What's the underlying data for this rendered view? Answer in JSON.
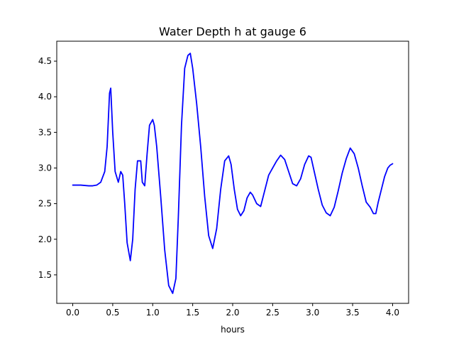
{
  "chart_data": {
    "type": "line",
    "title": "Water Depth h at gauge 6",
    "xlabel": "hours",
    "ylabel": "",
    "xlim": [
      -0.2,
      4.2
    ],
    "ylim": [
      1.1,
      4.78
    ],
    "xticks": [
      0.0,
      0.5,
      1.0,
      1.5,
      2.0,
      2.5,
      3.0,
      3.5,
      4.0
    ],
    "xtick_labels": [
      "0.0",
      "0.5",
      "1.0",
      "1.5",
      "2.0",
      "2.5",
      "3.0",
      "3.5",
      "4.0"
    ],
    "yticks": [
      1.5,
      2.0,
      2.5,
      3.0,
      3.5,
      4.0,
      4.5
    ],
    "ytick_labels": [
      "1.5",
      "2.0",
      "2.5",
      "3.0",
      "3.5",
      "4.0",
      "4.5"
    ],
    "grid": false,
    "series": [
      {
        "color": "#0000ff",
        "x": [
          0.0,
          0.1,
          0.2,
          0.25,
          0.3,
          0.35,
          0.4,
          0.43,
          0.46,
          0.475,
          0.5,
          0.53,
          0.57,
          0.6,
          0.625,
          0.65,
          0.68,
          0.72,
          0.75,
          0.78,
          0.81,
          0.85,
          0.87,
          0.9,
          0.93,
          0.96,
          1.0,
          1.02,
          1.05,
          1.1,
          1.15,
          1.2,
          1.25,
          1.29,
          1.32,
          1.36,
          1.4,
          1.44,
          1.47,
          1.5,
          1.55,
          1.6,
          1.65,
          1.7,
          1.75,
          1.8,
          1.85,
          1.9,
          1.95,
          1.98,
          2.02,
          2.06,
          2.1,
          2.14,
          2.18,
          2.22,
          2.25,
          2.3,
          2.35,
          2.4,
          2.45,
          2.5,
          2.55,
          2.6,
          2.65,
          2.7,
          2.75,
          2.8,
          2.85,
          2.9,
          2.95,
          2.98,
          3.02,
          3.07,
          3.12,
          3.17,
          3.22,
          3.27,
          3.32,
          3.37,
          3.42,
          3.47,
          3.52,
          3.57,
          3.62,
          3.67,
          3.72,
          3.76,
          3.79,
          3.82,
          3.86,
          3.9,
          3.94,
          3.97,
          4.0
        ],
        "y": [
          2.76,
          2.76,
          2.75,
          2.75,
          2.76,
          2.8,
          2.95,
          3.3,
          4.05,
          4.12,
          3.5,
          2.95,
          2.8,
          2.95,
          2.9,
          2.5,
          1.95,
          1.7,
          2.0,
          2.7,
          3.1,
          3.1,
          2.8,
          2.75,
          3.2,
          3.6,
          3.68,
          3.6,
          3.3,
          2.6,
          1.85,
          1.35,
          1.24,
          1.45,
          2.3,
          3.6,
          4.4,
          4.58,
          4.61,
          4.4,
          3.9,
          3.3,
          2.6,
          2.05,
          1.87,
          2.15,
          2.7,
          3.1,
          3.17,
          3.05,
          2.7,
          2.42,
          2.33,
          2.4,
          2.58,
          2.66,
          2.62,
          2.5,
          2.46,
          2.68,
          2.9,
          3.0,
          3.1,
          3.18,
          3.12,
          2.95,
          2.78,
          2.75,
          2.85,
          3.05,
          3.17,
          3.15,
          2.95,
          2.7,
          2.48,
          2.37,
          2.33,
          2.45,
          2.68,
          2.93,
          3.13,
          3.28,
          3.2,
          3.0,
          2.75,
          2.52,
          2.45,
          2.36,
          2.36,
          2.52,
          2.7,
          2.88,
          3.0,
          3.04,
          3.06
        ]
      }
    ]
  }
}
